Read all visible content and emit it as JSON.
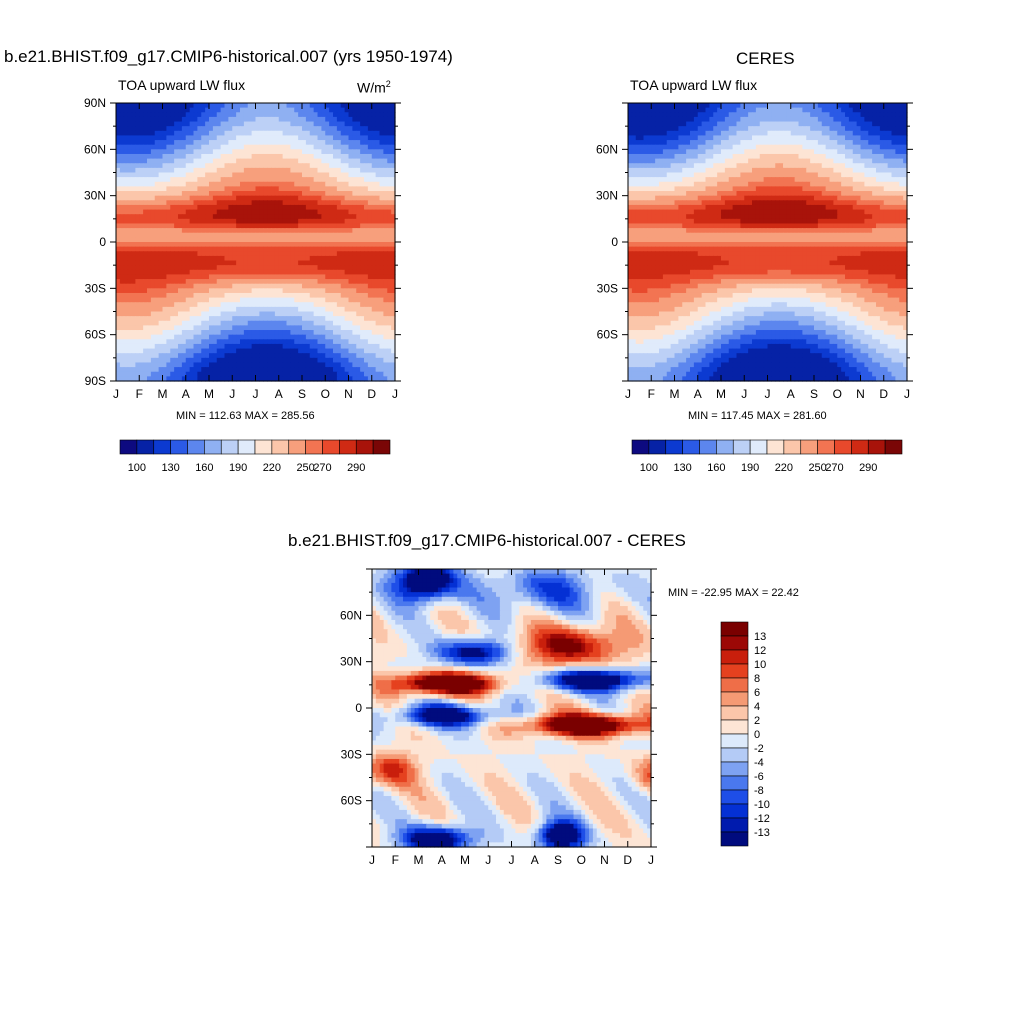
{
  "colors": {
    "abs_scale": [
      "#0d0a80",
      "#0622a6",
      "#0c3ad1",
      "#2b5ae6",
      "#5c86ee",
      "#8fb0f2",
      "#bcd0f6",
      "#e0ebfb",
      "#fde4d4",
      "#fbc6aa",
      "#f79f7c",
      "#f27452",
      "#e8492c",
      "#cf2a14",
      "#a8130a",
      "#7a0606"
    ],
    "diff_scale": [
      "#000b7e",
      "#001bae",
      "#0430d4",
      "#1e4ee8",
      "#4a78ee",
      "#7ea2f2",
      "#b4cbf6",
      "#ddeafb",
      "#fde5d5",
      "#fbc6aa",
      "#f59a74",
      "#ef6e48",
      "#e5411f",
      "#c91f0c",
      "#9c0806",
      "#7a0000"
    ]
  },
  "chart_data": [
    {
      "id": "model",
      "type": "heatmap",
      "title": "b.e21.BHIST.f09_g17.CMIP6-historical.007 (yrs 1950-1974)",
      "subtitle_left": "TOA upward LW flux",
      "units": "W/m",
      "units_sup": "2",
      "xlabels": [
        "J",
        "F",
        "M",
        "A",
        "M",
        "J",
        "J",
        "A",
        "S",
        "O",
        "N",
        "D",
        "J"
      ],
      "ylabels": [
        "90N",
        "60N",
        "30N",
        "0",
        "30S",
        "60S",
        "90S"
      ],
      "y_range": [
        90,
        -90
      ],
      "stats": "MIN = 112.63 MAX = 285.56",
      "min": 112.63,
      "max": 285.56,
      "colorbar_labels": [
        "100",
        "130",
        "160",
        "190",
        "220",
        "250",
        "270",
        "290"
      ]
    },
    {
      "id": "obs",
      "type": "heatmap",
      "title": "CERES",
      "subtitle_left": "TOA upward LW flux",
      "xlabels": [
        "J",
        "F",
        "M",
        "A",
        "M",
        "J",
        "J",
        "A",
        "S",
        "O",
        "N",
        "D",
        "J"
      ],
      "ylabels": [
        "60N",
        "30N",
        "0",
        "30S",
        "60S"
      ],
      "y_range": [
        90,
        -90
      ],
      "stats": "MIN = 117.45 MAX = 281.60",
      "min": 117.45,
      "max": 281.6,
      "colorbar_labels": [
        "100",
        "130",
        "160",
        "190",
        "220",
        "250",
        "270",
        "290"
      ]
    },
    {
      "id": "diff",
      "type": "heatmap",
      "title": "b.e21.BHIST.f09_g17.CMIP6-historical.007 - CERES",
      "xlabels": [
        "J",
        "F",
        "M",
        "A",
        "M",
        "J",
        "J",
        "A",
        "S",
        "O",
        "N",
        "D",
        "J"
      ],
      "ylabels": [
        "60N",
        "30N",
        "0",
        "30S",
        "60S"
      ],
      "y_range": [
        90,
        -90
      ],
      "stats": "MIN = -22.95 MAX =  22.42",
      "min": -22.95,
      "max": 22.42,
      "colorbar_labels": [
        "13",
        "12",
        "10",
        "8",
        "6",
        "4",
        "2",
        "0",
        "-2",
        "-4",
        "-6",
        "-8",
        "-10",
        "-12",
        "-13"
      ]
    }
  ]
}
